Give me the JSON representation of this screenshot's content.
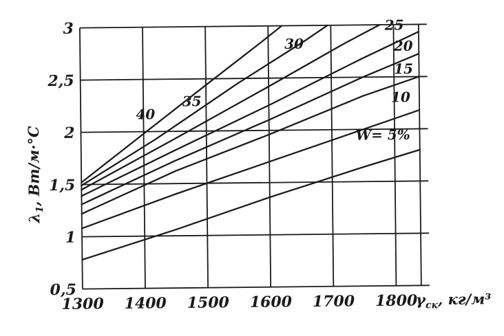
{
  "figure": {
    "background": "#ffffff",
    "ink_color": "#1a1a1a"
  },
  "chart_data": {
    "type": "line",
    "title": "",
    "xlabel": "γск, кг/м³",
    "ylabel": "λ1, Вт/м·°С",
    "xlabel_parts": {
      "symbol": "γ",
      "sub": "ск",
      "rest": ", кг/м³"
    },
    "ylabel_parts": {
      "symbol": "λ",
      "sub": "1",
      "rest": ", Вт/м·°С"
    },
    "axes": {
      "x_min": 1300,
      "x_max": 1840,
      "y_min": 0.5,
      "y_max": 3.0
    },
    "grid": true,
    "legend": "labels-on-curves",
    "x_ticks": [
      {
        "v": 1300,
        "label": "1300"
      },
      {
        "v": 1400,
        "label": "1400"
      },
      {
        "v": 1500,
        "label": "1500"
      },
      {
        "v": 1600,
        "label": "1600"
      },
      {
        "v": 1700,
        "label": "1700"
      },
      {
        "v": 1800,
        "label": "1800"
      }
    ],
    "y_ticks": [
      {
        "v": 0.5,
        "label": "0,5"
      },
      {
        "v": 1.0,
        "label": "1"
      },
      {
        "v": 1.5,
        "label": "1,5"
      },
      {
        "v": 2.0,
        "label": "2"
      },
      {
        "v": 2.5,
        "label": "2,5"
      },
      {
        "v": 3.0,
        "label": "3"
      }
    ],
    "series": [
      {
        "name": "W=5%",
        "label": "W= 5%",
        "label_pos": [
          1738,
          1.9
        ],
        "points": [
          [
            1300,
            0.78
          ],
          [
            1450,
            1.06
          ],
          [
            1600,
            1.36
          ],
          [
            1750,
            1.64
          ],
          [
            1840,
            1.8
          ]
        ]
      },
      {
        "name": "10",
        "label": "10",
        "label_pos": [
          1795,
          2.26
        ],
        "points": [
          [
            1300,
            1.08
          ],
          [
            1450,
            1.4
          ],
          [
            1600,
            1.7
          ],
          [
            1750,
            2.0
          ],
          [
            1840,
            2.18
          ]
        ]
      },
      {
        "name": "15",
        "label": "15",
        "label_pos": [
          1800,
          2.53
        ],
        "points": [
          [
            1300,
            1.22
          ],
          [
            1450,
            1.62
          ],
          [
            1600,
            1.96
          ],
          [
            1750,
            2.32
          ],
          [
            1840,
            2.5
          ]
        ]
      },
      {
        "name": "20",
        "label": "20",
        "label_pos": [
          1800,
          2.75
        ],
        "points": [
          [
            1300,
            1.31
          ],
          [
            1450,
            1.72
          ],
          [
            1600,
            2.1
          ],
          [
            1750,
            2.5
          ],
          [
            1840,
            2.72
          ]
        ]
      },
      {
        "name": "25",
        "label": "25",
        "label_pos": [
          1786,
          2.95
        ],
        "points": [
          [
            1300,
            1.39
          ],
          [
            1450,
            1.82
          ],
          [
            1600,
            2.24
          ],
          [
            1750,
            2.68
          ],
          [
            1840,
            2.93
          ]
        ]
      },
      {
        "name": "30",
        "label": "30",
        "label_pos": [
          1626,
          2.78
        ],
        "points": [
          [
            1300,
            1.45
          ],
          [
            1450,
            1.93
          ],
          [
            1600,
            2.42
          ],
          [
            1720,
            2.82
          ],
          [
            1778,
            3.0
          ]
        ]
      },
      {
        "name": "35",
        "label": "35",
        "label_pos": [
          1462,
          2.24
        ],
        "points": [
          [
            1300,
            1.49
          ],
          [
            1420,
            1.93
          ],
          [
            1550,
            2.45
          ],
          [
            1660,
            2.86
          ],
          [
            1695,
            3.0
          ]
        ]
      },
      {
        "name": "40",
        "label": "40",
        "label_pos": [
          1388,
          2.12
        ],
        "points": [
          [
            1300,
            1.52
          ],
          [
            1400,
            1.98
          ],
          [
            1500,
            2.44
          ],
          [
            1590,
            2.85
          ],
          [
            1622,
            3.0
          ]
        ]
      }
    ]
  }
}
